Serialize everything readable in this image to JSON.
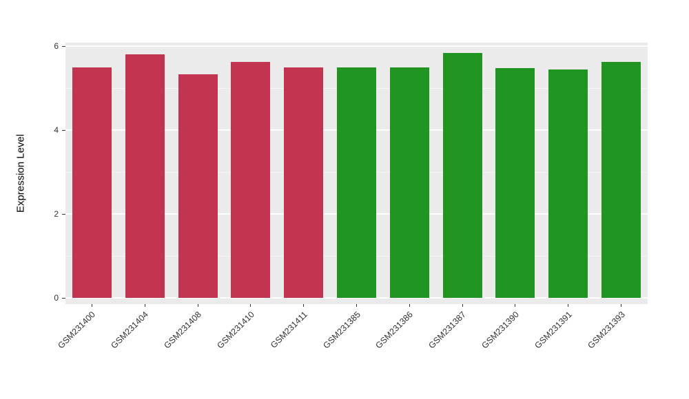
{
  "chart_data": {
    "type": "bar",
    "title": "",
    "xlabel": "",
    "ylabel": "Expression Level",
    "categories": [
      "GSM231400",
      "GSM231404",
      "GSM231408",
      "GSM231410",
      "GSM231411",
      "GSM231385",
      "GSM231386",
      "GSM231387",
      "GSM231390",
      "GSM231391",
      "GSM231393"
    ],
    "values": [
      5.5,
      5.8,
      5.32,
      5.63,
      5.5,
      5.5,
      5.5,
      5.83,
      5.47,
      5.45,
      5.63
    ],
    "groups": [
      "red",
      "red",
      "red",
      "red",
      "red",
      "green",
      "green",
      "green",
      "green",
      "green",
      "green"
    ],
    "colors": {
      "red": "#C23450",
      "green": "#219521"
    },
    "ylim": [
      0,
      6
    ],
    "yticks": [
      0,
      2,
      4,
      6
    ],
    "yticks_minor": [
      1,
      3,
      5
    ],
    "panel_background": "#EBEBEB",
    "grid_color": "#FFFFFF",
    "grid": "on",
    "legend": "none"
  }
}
